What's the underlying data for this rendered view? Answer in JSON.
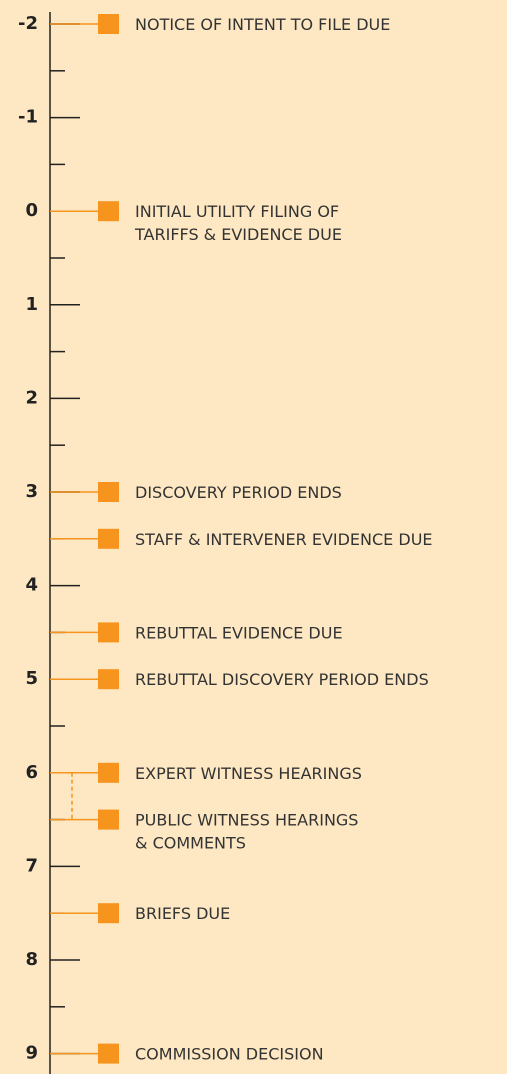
{
  "timeline": {
    "ticks": [
      -2,
      -1,
      0,
      1,
      2,
      3,
      4,
      5,
      6,
      7,
      8,
      9
    ],
    "events": [
      {
        "lines": [
          "NOTICE OF INTENT TO FILE DUE"
        ]
      },
      {
        "lines": [
          "INITIAL UTILITY FILING OF",
          "TARIFFS & EVIDENCE DUE"
        ]
      },
      {
        "lines": [
          "DISCOVERY PERIOD ENDS"
        ]
      },
      {
        "lines": [
          "STAFF & INTERVENER EVIDENCE DUE"
        ]
      },
      {
        "lines": [
          "REBUTTAL EVIDENCE DUE"
        ]
      },
      {
        "lines": [
          "REBUTTAL DISCOVERY PERIOD ENDS"
        ]
      },
      {
        "lines": [
          "EXPERT WITNESS HEARINGS"
        ]
      },
      {
        "lines": [
          "PUBLIC WITNESS HEARINGS",
          "& COMMENTS"
        ]
      },
      {
        "lines": [
          "BRIEFS DUE"
        ]
      },
      {
        "lines": [
          "COMMISSION DECISION"
        ]
      }
    ]
  }
}
